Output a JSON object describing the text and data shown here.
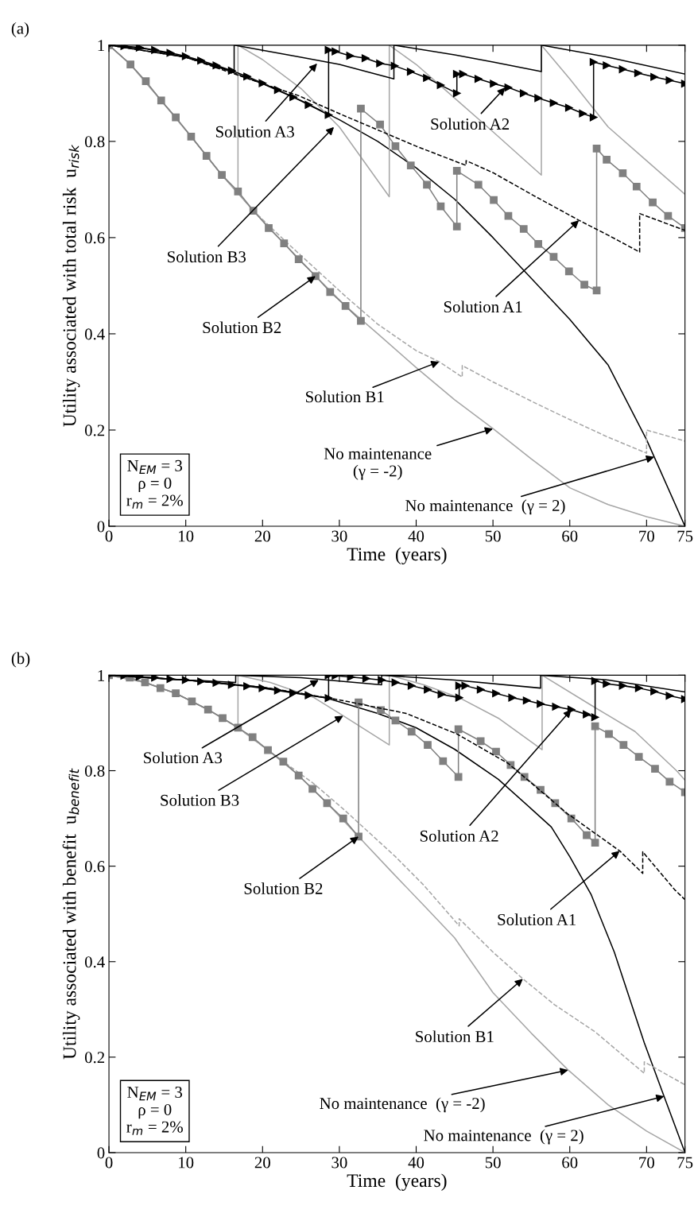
{
  "chart_data": [
    {
      "type": "line",
      "title": "(a)",
      "xlabel": "Time  (years)",
      "ylabel": "Utility associated with total risk  u$_{risk}$",
      "xlim": [
        0,
        75
      ],
      "ylim": [
        0,
        1
      ],
      "xticks": [
        0,
        10,
        20,
        30,
        40,
        50,
        60,
        70,
        75
      ],
      "yticks": [
        0,
        0.2,
        0.4,
        0.6,
        0.8,
        1
      ],
      "series": [
        {
          "color": "#a6a6a6",
          "line_style": "solid",
          "marker": "none",
          "x": [
            0,
            2.8,
            6.8,
            10.7,
            14.7,
            18.8,
            22.8,
            26.9,
            30.8,
            35,
            40,
            45,
            50,
            55,
            60,
            65,
            70,
            75
          ],
          "values": [
            1,
            0.96,
            0.885,
            0.81,
            0.73,
            0.656,
            0.588,
            0.52,
            0.458,
            0.4,
            0.33,
            0.263,
            0.203,
            0.14,
            0.08,
            0.045,
            0.02,
            0
          ]
        },
        {
          "color": "#000000",
          "line_style": "solid",
          "marker": "none",
          "x": [
            0,
            5,
            10,
            15,
            20,
            25,
            30,
            35,
            40,
            45,
            50,
            55,
            60,
            65,
            70,
            75
          ],
          "values": [
            1,
            0.992,
            0.975,
            0.95,
            0.92,
            0.885,
            0.845,
            0.8,
            0.745,
            0.68,
            0.6,
            0.515,
            0.43,
            0.335,
            0.18,
            0
          ]
        },
        {
          "color": "#a6a6a6",
          "line_style": "dashed",
          "marker": "none",
          "x": [
            0,
            2.8,
            6.8,
            10.7,
            14.7,
            18.8,
            22.8,
            26.9,
            30.8,
            35,
            40,
            43,
            46,
            46,
            50,
            55,
            58.9,
            65,
            70,
            70,
            75
          ],
          "values": [
            1,
            0.96,
            0.885,
            0.81,
            0.73,
            0.656,
            0.595,
            0.535,
            0.478,
            0.42,
            0.365,
            0.342,
            0.31,
            0.334,
            0.3,
            0.26,
            0.23,
            0.185,
            0.152,
            0.2,
            0.177
          ]
        },
        {
          "color": "#a6a6a6",
          "line_style": "solid",
          "marker": "none",
          "x": [
            0,
            2.8,
            6.8,
            10.7,
            14.7,
            16.8,
            16.8,
            20,
            25,
            30,
            36.5,
            36.5,
            40,
            45,
            50,
            56.3,
            56.3,
            60,
            65,
            70,
            75
          ],
          "values": [
            1,
            0.96,
            0.885,
            0.81,
            0.73,
            0.696,
            1,
            0.97,
            0.91,
            0.83,
            0.685,
            1,
            0.96,
            0.89,
            0.82,
            0.73,
            1,
            0.93,
            0.83,
            0.76,
            0.69
          ]
        },
        {
          "color": "#808080",
          "line_style": "solid",
          "marker": "square",
          "x": [
            0,
            2.8,
            4.8,
            6.8,
            8.7,
            10.7,
            12.7,
            14.7,
            16.8,
            18.8,
            20.8,
            22.8,
            24.7,
            26.9,
            28.8,
            30.8,
            32.8,
            32.8,
            35.3,
            37.3,
            39.3,
            41.4,
            43.2,
            45.3,
            45.3,
            48.1,
            50.1,
            52,
            54,
            55.9,
            57.9,
            59.9,
            61.9,
            63.5,
            63.5,
            64.8,
            66.9,
            68.7,
            70.8,
            72.8,
            75
          ],
          "values": [
            1,
            0.96,
            0.925,
            0.885,
            0.85,
            0.81,
            0.77,
            0.73,
            0.696,
            0.656,
            0.62,
            0.588,
            0.555,
            0.52,
            0.487,
            0.458,
            0.427,
            0.868,
            0.835,
            0.79,
            0.75,
            0.71,
            0.665,
            0.623,
            0.739,
            0.71,
            0.678,
            0.645,
            0.618,
            0.587,
            0.56,
            0.53,
            0.502,
            0.49,
            0.785,
            0.762,
            0.734,
            0.706,
            0.673,
            0.645,
            0.62
          ]
        },
        {
          "color": "#000000",
          "line_style": "dashed",
          "marker": "none",
          "x": [
            0,
            10,
            20,
            24.7,
            30.4,
            40,
            46.5,
            46.5,
            50,
            55,
            61.2,
            65,
            69.1,
            69.1,
            75
          ],
          "values": [
            1,
            0.975,
            0.92,
            0.895,
            0.855,
            0.79,
            0.75,
            0.76,
            0.735,
            0.69,
            0.636,
            0.605,
            0.57,
            0.65,
            0.615
          ]
        },
        {
          "color": "#000000",
          "line_style": "solid",
          "marker": "none",
          "x": [
            0,
            10,
            16.3,
            16.3,
            25,
            30,
            37.1,
            37.1,
            45,
            50,
            56.3,
            56.3,
            65,
            75
          ],
          "values": [
            1,
            0.975,
            0.945,
            1,
            0.975,
            0.96,
            0.93,
            1,
            0.98,
            0.965,
            0.945,
            1,
            0.975,
            0.94
          ]
        },
        {
          "color": "#000000",
          "line_style": "solid",
          "marker": "triangle",
          "x": [
            0,
            2,
            4,
            6,
            8,
            10,
            12,
            14,
            16,
            18,
            20,
            22,
            24,
            26,
            28.6,
            28.6,
            29.5,
            31.4,
            33.4,
            35.3,
            37.2,
            39.3,
            41.4,
            43.2,
            45.3,
            45.3,
            46.1,
            48.1,
            50.1,
            52,
            54,
            55.9,
            57.9,
            59.9,
            61.7,
            63.1,
            63.1,
            64.8,
            66.9,
            68.9,
            71,
            73,
            75
          ],
          "values": [
            1,
            0.998,
            0.995,
            0.99,
            0.984,
            0.977,
            0.968,
            0.958,
            0.947,
            0.935,
            0.921,
            0.907,
            0.892,
            0.876,
            0.855,
            0.99,
            0.987,
            0.978,
            0.973,
            0.962,
            0.957,
            0.945,
            0.932,
            0.917,
            0.9,
            0.94,
            0.94,
            0.93,
            0.92,
            0.912,
            0.9,
            0.89,
            0.88,
            0.87,
            0.858,
            0.85,
            0.965,
            0.958,
            0.95,
            0.942,
            0.934,
            0.927,
            0.92
          ]
        }
      ],
      "annotations": [
        {
          "text": "Solution A3",
          "x": 27.1,
          "y": 0.962
        },
        {
          "text": "Solution A2",
          "x": 51.6,
          "y": 0.912
        },
        {
          "text": "Solution B3",
          "x": 29.3,
          "y": 0.83
        },
        {
          "text": "Solution A1",
          "x": 61.2,
          "y": 0.636
        },
        {
          "text": "Solution B2",
          "x": 26.9,
          "y": 0.52
        },
        {
          "text": "Solution B1",
          "x": 43,
          "y": 0.342
        },
        {
          "text": "No maintenance\n(γ = -2)",
          "x": 50,
          "y": 0.203
        },
        {
          "text": "No maintenance  (γ = 2)",
          "x": 71,
          "y": 0.144
        },
        "N$_{EM}$ = 3\nρ = 0\nr$_{m}$ = 2%"
      ]
    },
    {
      "type": "line",
      "title": "(b)",
      "xlabel": "Time  (years)",
      "ylabel": "Utility associated with benefit  u$_{benefit}$",
      "xlim": [
        0,
        75
      ],
      "ylim": [
        0,
        1
      ],
      "xticks": [
        0,
        10,
        20,
        30,
        40,
        50,
        60,
        70,
        75
      ],
      "yticks": [
        0,
        0.2,
        0.4,
        0.6,
        0.8,
        1
      ],
      "series": [
        {
          "color": "#a6a6a6",
          "line_style": "solid",
          "marker": "none",
          "x": [
            0,
            4.7,
            8.7,
            12.9,
            16.8,
            20.7,
            24.7,
            28.4,
            32.5,
            36.7,
            41.1,
            45,
            50,
            55,
            59.8,
            65,
            70,
            75
          ],
          "values": [
            1,
            0.985,
            0.962,
            0.928,
            0.89,
            0.843,
            0.79,
            0.732,
            0.662,
            0.59,
            0.516,
            0.45,
            0.335,
            0.25,
            0.173,
            0.1,
            0.045,
            0
          ]
        },
        {
          "color": "#000000",
          "line_style": "solid",
          "marker": "none",
          "x": [
            0,
            10,
            20,
            28.4,
            35,
            40,
            45,
            50.7,
            55,
            57.6,
            60,
            62.8,
            65.8,
            69.7,
            72,
            75
          ],
          "values": [
            1,
            0.99,
            0.975,
            0.952,
            0.92,
            0.89,
            0.845,
            0.782,
            0.72,
            0.682,
            0.62,
            0.54,
            0.42,
            0.23,
            0.13,
            0
          ]
        },
        {
          "color": "#a6a6a6",
          "line_style": "dashed",
          "marker": "none",
          "x": [
            0,
            4.7,
            8.7,
            12.9,
            16.8,
            20.7,
            22.7,
            26.5,
            30.5,
            37.3,
            41,
            45.6,
            45.6,
            50,
            53.9,
            58,
            63.3,
            69.7,
            69.7,
            75
          ],
          "values": [
            1,
            0.985,
            0.962,
            0.928,
            0.89,
            0.843,
            0.819,
            0.775,
            0.72,
            0.62,
            0.56,
            0.475,
            0.49,
            0.42,
            0.364,
            0.31,
            0.253,
            0.166,
            0.19,
            0.142
          ]
        },
        {
          "color": "#a6a6a6",
          "line_style": "solid",
          "marker": "none",
          "x": [
            0,
            4.7,
            8.7,
            12.9,
            16.8,
            16.8,
            21,
            26.7,
            30.5,
            36.5,
            36.5,
            41,
            45.6,
            50.7,
            56.4,
            56.4,
            62.8,
            68.5,
            73.9,
            75
          ],
          "values": [
            1,
            0.985,
            0.962,
            0.928,
            0.89,
            1,
            0.985,
            0.953,
            0.915,
            0.854,
            1,
            0.98,
            0.953,
            0.91,
            0.844,
            1,
            0.937,
            0.882,
            0.8,
            0.78
          ]
        },
        {
          "color": "#808080",
          "line_style": "solid",
          "marker": "square",
          "x": [
            0,
            2.7,
            4.7,
            6.7,
            8.7,
            10.8,
            12.9,
            14.8,
            16.8,
            18.7,
            20.7,
            22.7,
            24.7,
            26.5,
            28.4,
            30.5,
            32.5,
            32.5,
            35.4,
            37.3,
            39.4,
            41.5,
            43.5,
            45.5,
            45.5,
            48.4,
            50.4,
            52.3,
            54.1,
            56.2,
            58.1,
            60.2,
            62.2,
            63.3,
            63.3,
            65.1,
            67,
            69,
            71.1,
            73,
            75
          ],
          "values": [
            1,
            0.995,
            0.985,
            0.973,
            0.962,
            0.945,
            0.928,
            0.91,
            0.89,
            0.87,
            0.843,
            0.819,
            0.79,
            0.762,
            0.732,
            0.7,
            0.662,
            0.943,
            0.927,
            0.905,
            0.882,
            0.854,
            0.82,
            0.787,
            0.887,
            0.862,
            0.84,
            0.812,
            0.787,
            0.76,
            0.732,
            0.7,
            0.665,
            0.649,
            0.893,
            0.877,
            0.854,
            0.829,
            0.804,
            0.777,
            0.755
          ]
        },
        {
          "color": "#000000",
          "line_style": "dashed",
          "marker": "none",
          "x": [
            0,
            10,
            20,
            25,
            30.1,
            38.7,
            45.3,
            52,
            59.7,
            66.5,
            69.5,
            69.5,
            73.7,
            75
          ],
          "values": [
            1,
            0.99,
            0.975,
            0.962,
            0.948,
            0.92,
            0.877,
            0.815,
            0.71,
            0.632,
            0.585,
            0.63,
            0.55,
            0.53
          ]
        },
        {
          "color": "#000000",
          "line_style": "solid",
          "marker": "none",
          "x": [
            0,
            10,
            16.5,
            16.5,
            25,
            35.5,
            35.5,
            45,
            56.2,
            56.2,
            65,
            75
          ],
          "values": [
            1,
            0.99,
            0.985,
            1,
            0.995,
            0.98,
            1,
            0.99,
            0.973,
            1,
            0.99,
            0.965
          ]
        },
        {
          "color": "#000000",
          "line_style": "solid",
          "marker": "triangle",
          "x": [
            0,
            2,
            4,
            6,
            8,
            10,
            12,
            14,
            16,
            18,
            20,
            22,
            24,
            26,
            28.6,
            28.6,
            29.5,
            31.5,
            33.5,
            35.5,
            37.3,
            39.4,
            41.5,
            43.3,
            45.6,
            45.6,
            46.4,
            48.4,
            50.4,
            52.5,
            54.4,
            56.2,
            58.2,
            60.2,
            62.2,
            63.3,
            63.3,
            64.8,
            66.9,
            69,
            71,
            73,
            75
          ],
          "values": [
            1,
            0.999,
            0.997,
            0.995,
            0.992,
            0.99,
            0.987,
            0.984,
            0.98,
            0.977,
            0.973,
            0.968,
            0.963,
            0.958,
            0.952,
            1,
            0.999,
            0.996,
            0.993,
            0.99,
            0.985,
            0.978,
            0.97,
            0.96,
            0.953,
            0.978,
            0.978,
            0.97,
            0.962,
            0.953,
            0.947,
            0.94,
            0.934,
            0.928,
            0.918,
            0.912,
            0.988,
            0.982,
            0.978,
            0.973,
            0.966,
            0.957,
            0.95
          ]
        }
      ],
      "annotations": [
        {
          "text": "Solution A3",
          "x": 27.3,
          "y": 0.99
        },
        {
          "text": "Solution B3",
          "x": 30.5,
          "y": 0.915
        },
        {
          "text": "Solution B2",
          "x": 32.5,
          "y": 0.662
        },
        {
          "text": "Solution A2",
          "x": 60.2,
          "y": 0.928
        },
        {
          "text": "Solution A1",
          "x": 66.5,
          "y": 0.632
        },
        {
          "text": "Solution B1",
          "x": 53.9,
          "y": 0.364
        },
        {
          "text": "No maintenance  (γ = -2)",
          "x": 59.8,
          "y": 0.173
        },
        {
          "text": "No maintenance  (γ = 2)",
          "x": 72.3,
          "y": 0.118
        },
        "N$_{EM}$ = 3\nρ = 0\nr$_{m}$ = 2%"
      ]
    }
  ]
}
